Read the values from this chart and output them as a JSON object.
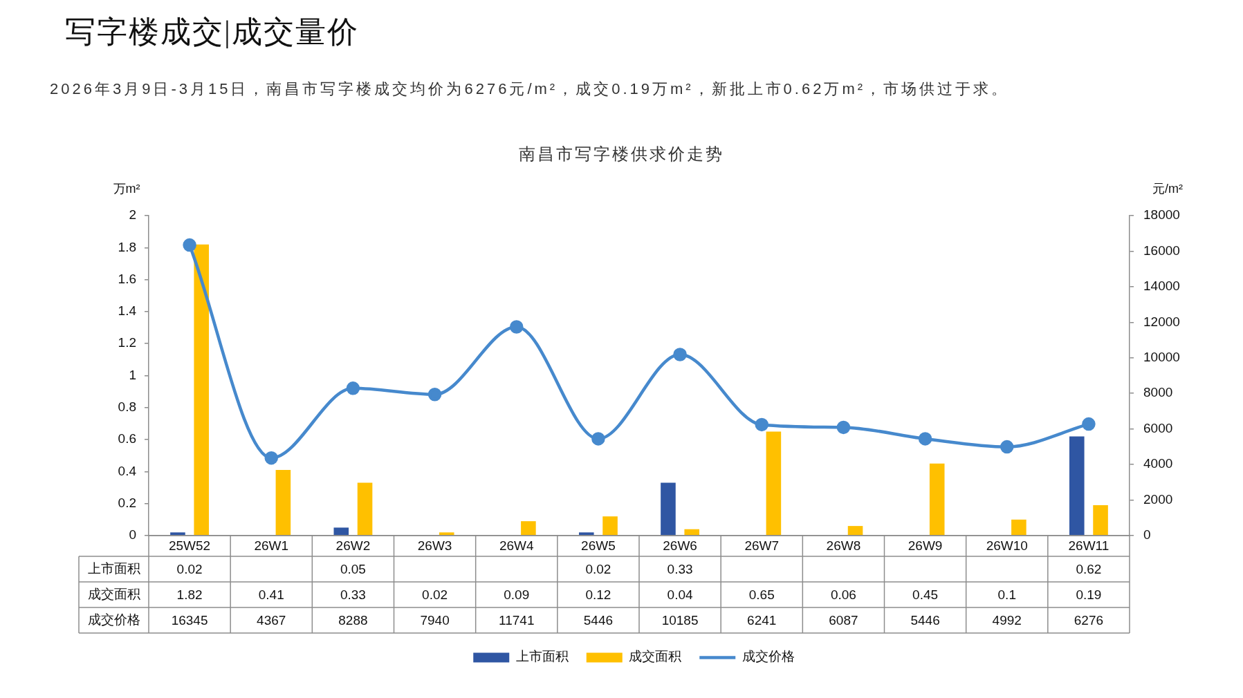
{
  "chart_data": {
    "type": "bar",
    "title": "南昌市写字楼供求价走势",
    "annotations": [
      "写字楼成交|成交量价",
      "2026年3月9日-3月15日，南昌市写字楼成交均价为6276元/m²，成交0.19万m²，新批上市0.62万m²，市场供过于求。"
    ],
    "ylabel": "万m²",
    "y2label": "元/m²",
    "categories": [
      "25W52",
      "26W1",
      "26W2",
      "26W3",
      "26W4",
      "26W5",
      "26W6",
      "26W7",
      "26W8",
      "26W9",
      "26W10",
      "26W11"
    ],
    "series": [
      {
        "name": "上市面积",
        "color": "#2f56a3",
        "values": [
          0.02,
          null,
          0.05,
          null,
          null,
          0.02,
          0.33,
          null,
          null,
          null,
          null,
          0.62
        ]
      },
      {
        "name": "成交面积",
        "color": "#ffc000",
        "values": [
          1.82,
          0.41,
          0.33,
          0.02,
          0.09,
          0.12,
          0.04,
          0.65,
          0.06,
          0.45,
          0.1,
          0.19
        ]
      },
      {
        "name": "成交价格",
        "type": "line",
        "axis": "y2",
        "color": "#4689cd",
        "values": [
          16345,
          4367,
          8288,
          7940,
          11741,
          5446,
          10185,
          6241,
          6087,
          5446,
          4992,
          6276
        ]
      }
    ],
    "ylim": [
      0,
      2
    ],
    "yticks": [
      0,
      0.2,
      0.4,
      0.6,
      0.8,
      1,
      1.2,
      1.4,
      1.6,
      1.8,
      2
    ],
    "y2lim": [
      0,
      18000
    ],
    "y2ticks": [
      0,
      2000,
      4000,
      6000,
      8000,
      10000,
      12000,
      14000,
      16000,
      18000
    ],
    "marker": "circle",
    "legend": "bottom",
    "data_labels": true
  }
}
